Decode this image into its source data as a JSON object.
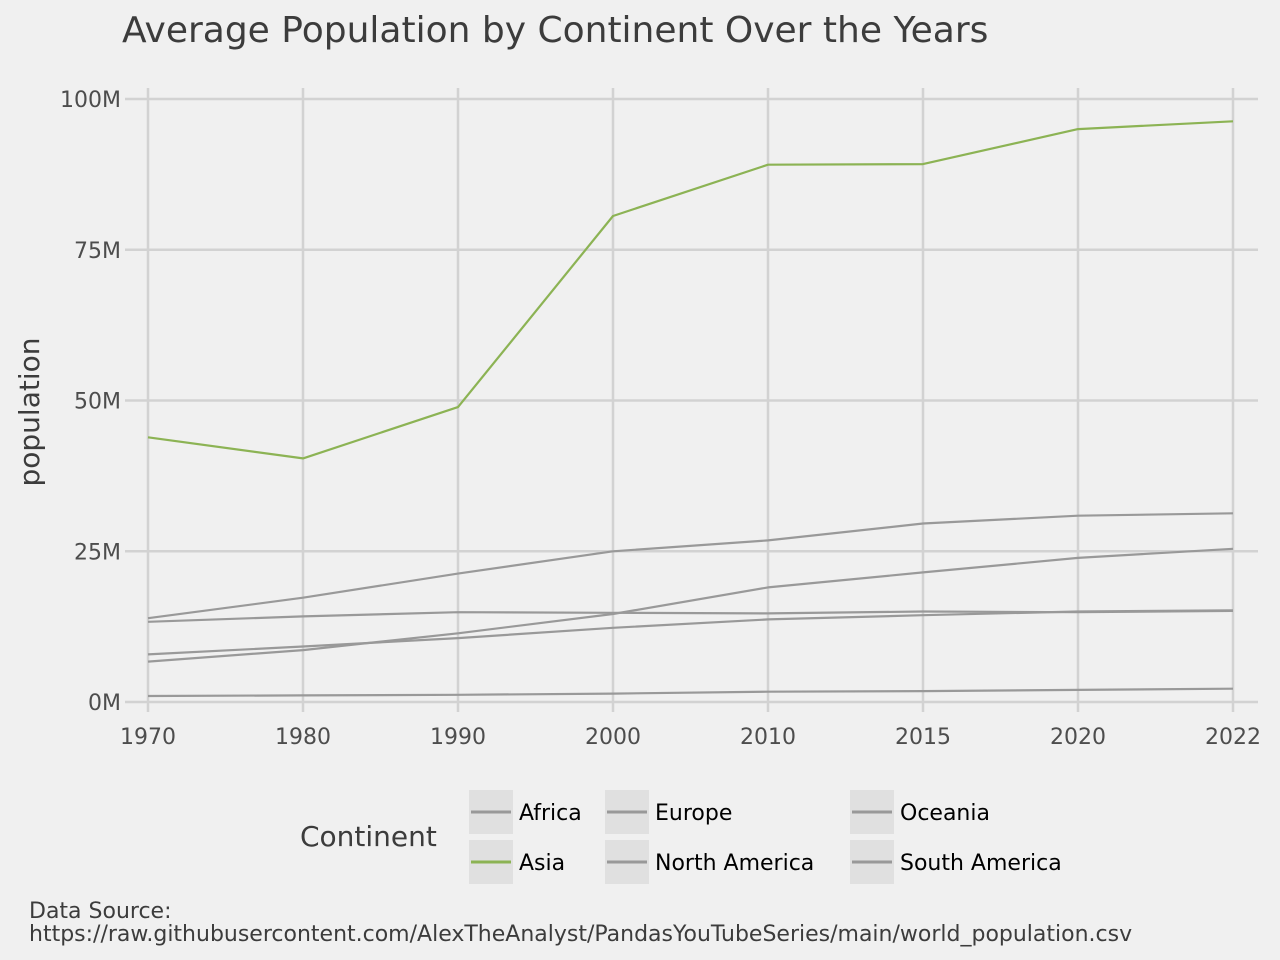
{
  "chart_data": {
    "type": "line",
    "title": "Average Population by Continent Over the Years",
    "xlabel": "",
    "ylabel": "population",
    "x": [
      1970,
      1980,
      1990,
      2000,
      2010,
      2015,
      2020,
      2022
    ],
    "x_tick_labels": [
      "1970",
      "1980",
      "1990",
      "2000",
      "2010",
      "2015",
      "2020",
      "2022"
    ],
    "y_ticks": [
      0,
      25,
      50,
      75,
      100
    ],
    "y_tick_labels": [
      "0M",
      "25M",
      "50M",
      "75M",
      "100M"
    ],
    "ylim": [
      -2,
      101
    ],
    "y_unit": "M",
    "grid": true,
    "legend": {
      "title": "Continent",
      "placement": "bottom"
    },
    "series": [
      {
        "name": "Africa",
        "color": "#999999",
        "values": [
          13.9,
          17.3,
          21.3,
          25.0,
          26.8,
          29.6,
          30.9,
          31.3
        ]
      },
      {
        "name": "Asia",
        "color": "#8cb354",
        "values": [
          43.9,
          40.4,
          48.9,
          80.6,
          89.1,
          89.2,
          95.0,
          96.3
        ]
      },
      {
        "name": "Europe",
        "color": "#999999",
        "values": [
          13.3,
          14.2,
          14.9,
          14.8,
          14.7,
          15.0,
          14.9,
          15.1
        ]
      },
      {
        "name": "North America",
        "color": "#999999",
        "values": [
          1.0,
          1.1,
          1.2,
          1.4,
          1.7,
          1.8,
          2.0,
          2.2
        ]
      },
      {
        "name": "Oceania",
        "color": "#999999",
        "values": [
          6.7,
          8.6,
          11.4,
          14.6,
          19.0,
          21.5,
          23.9,
          25.4
        ]
      },
      {
        "name": "South America",
        "color": "#999999",
        "values": [
          7.9,
          9.2,
          10.6,
          12.3,
          13.7,
          14.4,
          15.0,
          15.2
        ]
      }
    ],
    "caption": {
      "line1": "Data Source:",
      "line2": "https://raw.githubusercontent.com/AlexTheAnalyst/PandasYouTubeSeries/main/world_population.csv"
    }
  }
}
